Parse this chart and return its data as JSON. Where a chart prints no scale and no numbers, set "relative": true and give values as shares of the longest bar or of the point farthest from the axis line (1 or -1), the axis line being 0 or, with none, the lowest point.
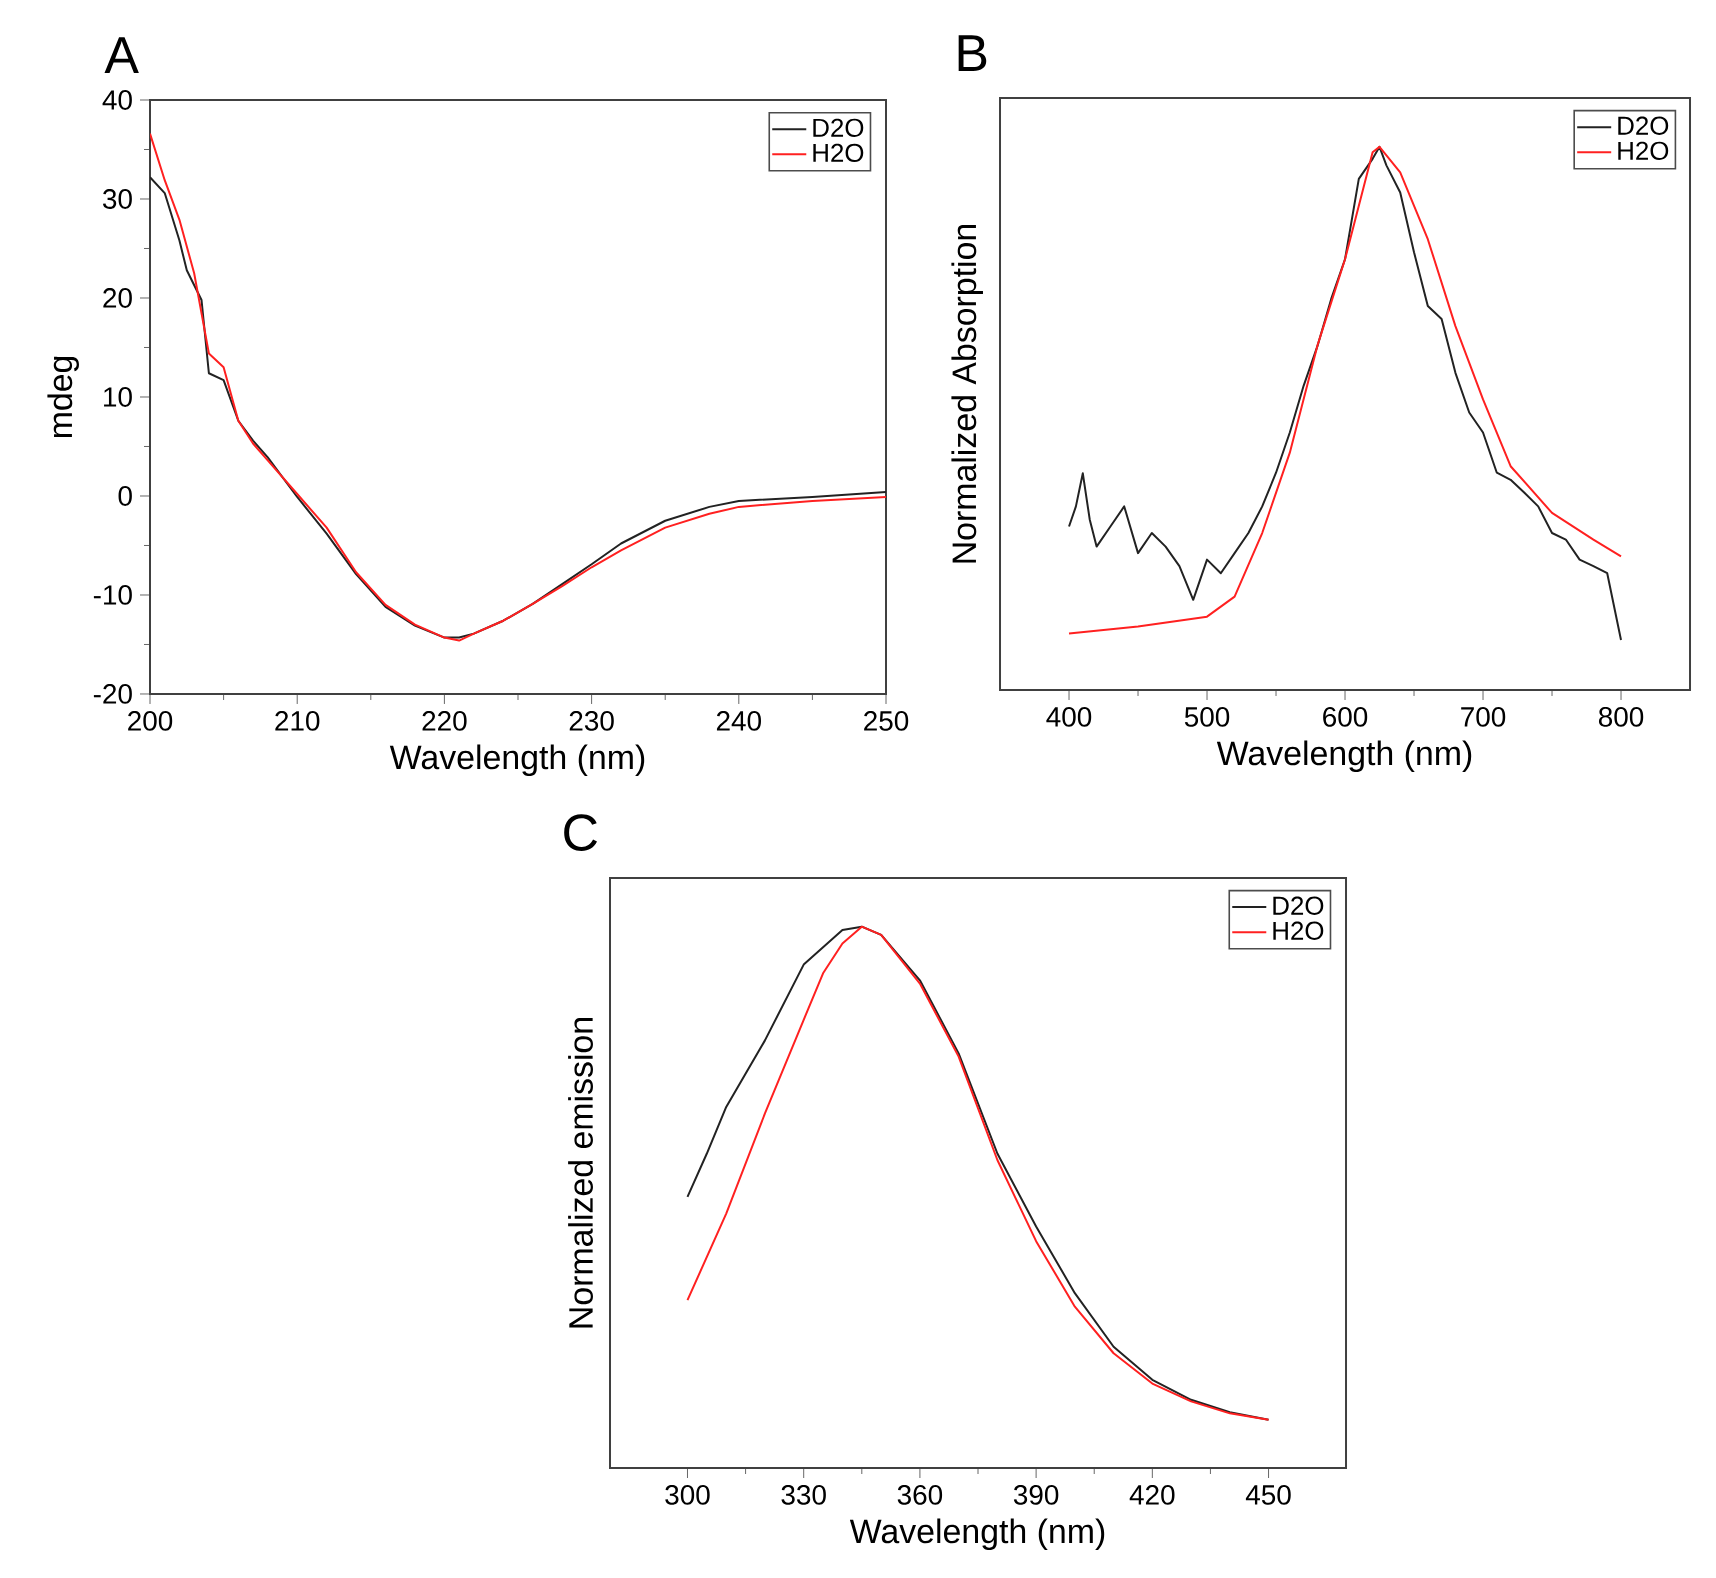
{
  "chart_data": [
    {
      "type": "line",
      "title": "A",
      "xlabel": "Wavelength (nm)",
      "ylabel": "mdeg",
      "xlim": [
        200,
        250
      ],
      "ylim": [
        -20,
        40
      ],
      "xticks": [
        200,
        210,
        220,
        230,
        240,
        250
      ],
      "yticks": [
        -20,
        -10,
        0,
        10,
        20,
        30,
        40
      ],
      "legend": "top right",
      "series": [
        {
          "name": "D2O",
          "color": "#222222",
          "x": [
            200,
            201,
            202,
            202.5,
            203.5,
            204,
            205,
            206,
            207,
            208,
            210,
            212,
            214,
            216,
            218,
            220,
            221,
            222,
            224,
            226,
            228,
            230,
            232,
            235,
            238,
            240,
            245,
            250
          ],
          "values": [
            32.2,
            30.6,
            25.8,
            22.8,
            19.8,
            12.4,
            11.7,
            7.6,
            5.6,
            3.9,
            -0.1,
            -3.8,
            -7.9,
            -11.2,
            -13.1,
            -14.3,
            -14.3,
            -13.9,
            -12.6,
            -10.9,
            -8.9,
            -6.9,
            -4.8,
            -2.5,
            -1.1,
            -0.5,
            -0.1,
            0.4
          ]
        },
        {
          "name": "H2O",
          "color": "#ff2020",
          "x": [
            200,
            201,
            202,
            203,
            204,
            205,
            206,
            207,
            208,
            210,
            212,
            214,
            216,
            218,
            220,
            221,
            222,
            224,
            226,
            228,
            230,
            232,
            235,
            238,
            240,
            245,
            250
          ],
          "values": [
            36.6,
            31.9,
            27.9,
            22.5,
            14.4,
            13.0,
            7.6,
            5.3,
            3.6,
            0.2,
            -3.2,
            -7.7,
            -11.0,
            -13.0,
            -14.3,
            -14.6,
            -13.9,
            -12.6,
            -10.9,
            -9.1,
            -7.2,
            -5.5,
            -3.2,
            -1.8,
            -1.1,
            -0.5,
            -0.1
          ]
        }
      ]
    },
    {
      "type": "line",
      "title": "B",
      "xlabel": "Wavelength (nm)",
      "ylabel": "Normalized Absorption",
      "xlim": [
        350,
        850
      ],
      "xticks": [
        400,
        500,
        600,
        700,
        800
      ],
      "relative": true,
      "tick_labels": "x",
      "legend": "top right",
      "series": [
        {
          "name": "D2O",
          "color": "#222222",
          "x": [
            400,
            405,
            410,
            415,
            420,
            430,
            440,
            450,
            460,
            470,
            480,
            490,
            500,
            510,
            520,
            530,
            540,
            550,
            560,
            570,
            580,
            590,
            600,
            610,
            620,
            625,
            630,
            640,
            650,
            660,
            670,
            680,
            690,
            700,
            710,
            720,
            730,
            740,
            750,
            760,
            770,
            780,
            790,
            800
          ],
          "values": [
            0.301,
            0.338,
            0.399,
            0.314,
            0.264,
            0.301,
            0.338,
            0.252,
            0.289,
            0.264,
            0.228,
            0.166,
            0.24,
            0.215,
            0.252,
            0.289,
            0.338,
            0.4,
            0.474,
            0.56,
            0.633,
            0.72,
            0.793,
            0.941,
            0.978,
            1.0,
            0.966,
            0.916,
            0.806,
            0.707,
            0.683,
            0.584,
            0.511,
            0.474,
            0.4,
            0.387,
            0.363,
            0.338,
            0.289,
            0.277,
            0.24,
            0.228,
            0.215,
            0.092
          ]
        },
        {
          "name": "H2O",
          "color": "#ff2020",
          "x": [
            400,
            450,
            500,
            520,
            540,
            560,
            580,
            600,
            620,
            625,
            640,
            660,
            680,
            700,
            720,
            750,
            780,
            800
          ],
          "values": [
            0.104,
            0.117,
            0.135,
            0.172,
            0.289,
            0.437,
            0.634,
            0.793,
            0.99,
            1.0,
            0.953,
            0.83,
            0.67,
            0.535,
            0.412,
            0.326,
            0.277,
            0.246
          ]
        }
      ]
    },
    {
      "type": "line",
      "title": "C",
      "xlabel": "Wavelength (nm)",
      "ylabel": "Normalized emission",
      "xlim": [
        280,
        470
      ],
      "xticks": [
        300,
        330,
        360,
        390,
        420,
        450
      ],
      "relative": true,
      "tick_labels": "x",
      "legend": "top right",
      "series": [
        {
          "name": "D2O",
          "color": "#222222",
          "x": [
            300,
            305,
            310,
            320,
            330,
            340,
            345,
            350,
            360,
            370,
            380,
            390,
            400,
            410,
            420,
            430,
            440,
            450
          ],
          "values": [
            0.501,
            0.581,
            0.667,
            0.79,
            0.93,
            0.994,
            1.0,
            0.985,
            0.901,
            0.766,
            0.581,
            0.446,
            0.323,
            0.224,
            0.163,
            0.126,
            0.103,
            0.089
          ]
        },
        {
          "name": "H2O",
          "color": "#ff2020",
          "x": [
            300,
            310,
            320,
            330,
            335,
            340,
            345,
            350,
            360,
            370,
            380,
            390,
            400,
            410,
            420,
            430,
            440,
            450
          ],
          "values": [
            0.31,
            0.47,
            0.655,
            0.828,
            0.914,
            0.969,
            1.0,
            0.985,
            0.895,
            0.76,
            0.569,
            0.419,
            0.298,
            0.212,
            0.156,
            0.123,
            0.101,
            0.089
          ]
        }
      ]
    }
  ]
}
